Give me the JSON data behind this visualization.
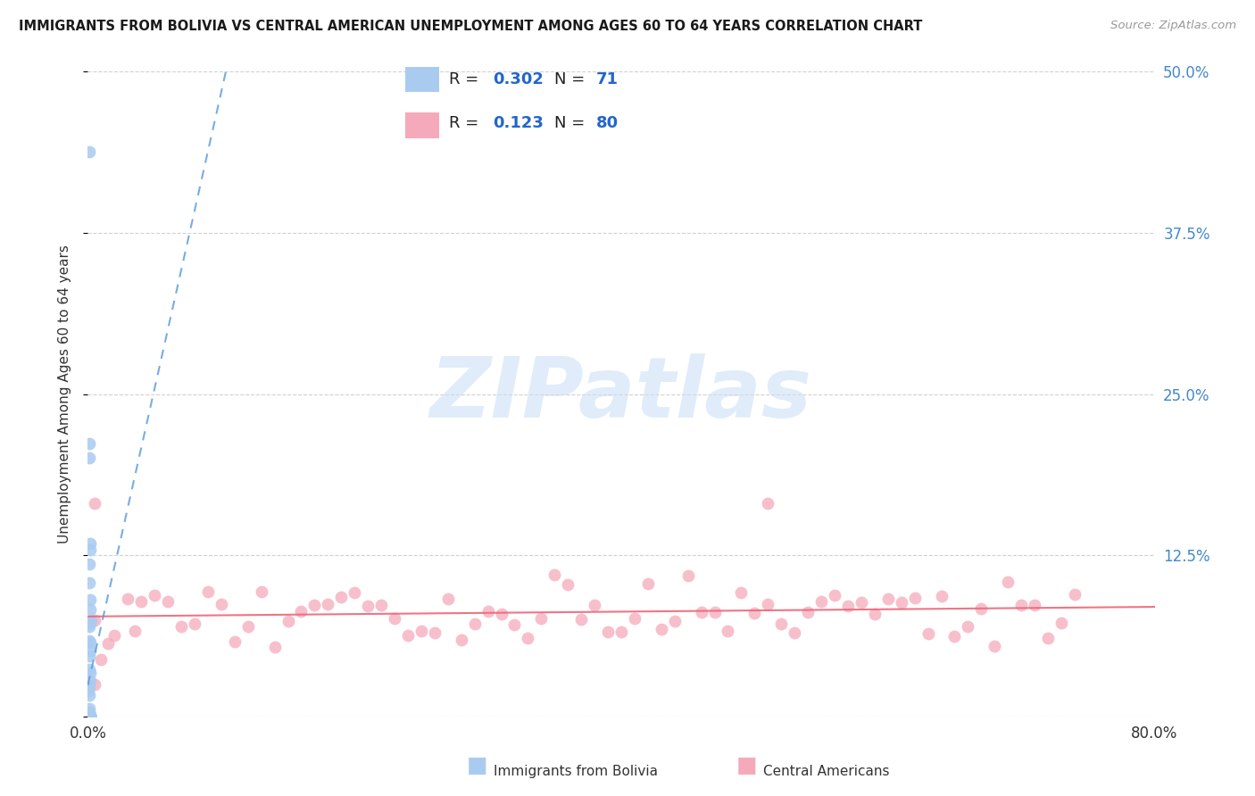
{
  "title": "IMMIGRANTS FROM BOLIVIA VS CENTRAL AMERICAN UNEMPLOYMENT AMONG AGES 60 TO 64 YEARS CORRELATION CHART",
  "source": "Source: ZipAtlas.com",
  "ylabel": "Unemployment Among Ages 60 to 64 years",
  "xlim": [
    0,
    0.8
  ],
  "ylim": [
    0,
    0.5
  ],
  "R_bolivia": 0.302,
  "N_bolivia": 71,
  "R_central": 0.123,
  "N_central": 80,
  "bolivia_color": "#aacbf0",
  "bolivia_edge_color": "#88aadd",
  "central_color": "#f5aabb",
  "central_edge_color": "#dd8899",
  "bolivia_trend_color": "#5599dd",
  "central_trend_color": "#ee6677",
  "watermark_color": "#cce0f5",
  "watermark_alpha": 0.6,
  "background_color": "#ffffff",
  "grid_color": "#cccccc",
  "title_color": "#1a1a1a",
  "source_color": "#999999",
  "axis_label_color": "#333333",
  "tick_color_blue": "#4488cc",
  "bolivia_x": [
    0.0008,
    0.001,
    0.0012,
    0.0015,
    0.002,
    0.0008,
    0.001,
    0.0015,
    0.002,
    0.0025,
    0.001,
    0.0008,
    0.0012,
    0.002,
    0.0018,
    0.001,
    0.0008,
    0.0015,
    0.002,
    0.001,
    0.0005,
    0.001,
    0.0008,
    0.0012,
    0.0015,
    0.001,
    0.0005,
    0.0008,
    0.001,
    0.0012,
    0.002,
    0.0018,
    0.001,
    0.0008,
    0.0015,
    0.001,
    0.0008,
    0.0012,
    0.002,
    0.001,
    0.0005,
    0.001,
    0.0008,
    0.0015,
    0.001,
    0.0008,
    0.0012,
    0.001,
    0.0015,
    0.002,
    0.001,
    0.0008,
    0.0015,
    0.0012,
    0.001,
    0.0005,
    0.001,
    0.0008,
    0.0015,
    0.001,
    0.0008,
    0.0012,
    0.002,
    0.0015,
    0.001,
    0.0008,
    0.0012,
    0.002,
    0.0005,
    0.001,
    0.0015
  ],
  "bolivia_y": [
    0.44,
    0.21,
    0.2,
    0.135,
    0.125,
    0.115,
    0.105,
    0.095,
    0.085,
    0.075,
    0.07,
    0.065,
    0.06,
    0.055,
    0.05,
    0.045,
    0.04,
    0.035,
    0.03,
    0.025,
    0.02,
    0.015,
    0.01,
    0.005,
    0.003,
    0.002,
    0.001,
    0.0,
    0.0,
    0.0,
    0.0,
    0.0,
    0.0,
    0.0,
    0.0,
    0.0,
    0.0,
    0.0,
    0.0,
    0.0,
    0.0,
    0.0,
    0.0,
    0.0,
    0.0,
    0.0,
    0.0,
    0.0,
    0.0,
    0.0,
    0.0,
    0.0,
    0.0,
    0.0,
    0.0,
    0.0,
    0.0,
    0.0,
    0.0,
    0.0,
    0.0,
    0.0,
    0.0,
    0.0,
    0.0,
    0.0,
    0.0,
    0.0,
    0.0,
    0.0,
    0.0
  ],
  "central_x": [
    0.005,
    0.01,
    0.015,
    0.02,
    0.03,
    0.035,
    0.04,
    0.05,
    0.06,
    0.07,
    0.08,
    0.09,
    0.1,
    0.11,
    0.12,
    0.13,
    0.14,
    0.15,
    0.16,
    0.17,
    0.18,
    0.19,
    0.2,
    0.21,
    0.22,
    0.23,
    0.24,
    0.25,
    0.26,
    0.27,
    0.28,
    0.29,
    0.3,
    0.31,
    0.32,
    0.33,
    0.34,
    0.35,
    0.36,
    0.37,
    0.38,
    0.39,
    0.4,
    0.41,
    0.42,
    0.43,
    0.44,
    0.45,
    0.46,
    0.47,
    0.48,
    0.49,
    0.5,
    0.51,
    0.52,
    0.53,
    0.54,
    0.55,
    0.56,
    0.57,
    0.58,
    0.59,
    0.6,
    0.61,
    0.62,
    0.63,
    0.64,
    0.65,
    0.66,
    0.67,
    0.68,
    0.69,
    0.7,
    0.71,
    0.72,
    0.005,
    0.51,
    0.005,
    0.73,
    0.74
  ],
  "central_y": [
    0.065,
    0.055,
    0.07,
    0.06,
    0.08,
    0.07,
    0.065,
    0.085,
    0.09,
    0.075,
    0.08,
    0.085,
    0.09,
    0.08,
    0.075,
    0.085,
    0.07,
    0.09,
    0.08,
    0.085,
    0.08,
    0.075,
    0.085,
    0.08,
    0.075,
    0.085,
    0.07,
    0.08,
    0.075,
    0.085,
    0.08,
    0.075,
    0.085,
    0.08,
    0.075,
    0.07,
    0.08,
    0.09,
    0.08,
    0.075,
    0.08,
    0.085,
    0.075,
    0.08,
    0.085,
    0.08,
    0.075,
    0.085,
    0.08,
    0.075,
    0.085,
    0.08,
    0.075,
    0.085,
    0.08,
    0.075,
    0.085,
    0.08,
    0.075,
    0.085,
    0.08,
    0.075,
    0.085,
    0.08,
    0.075,
    0.085,
    0.08,
    0.075,
    0.085,
    0.08,
    0.075,
    0.085,
    0.08,
    0.075,
    0.085,
    0.165,
    0.165,
    0.03,
    0.09,
    0.085
  ]
}
